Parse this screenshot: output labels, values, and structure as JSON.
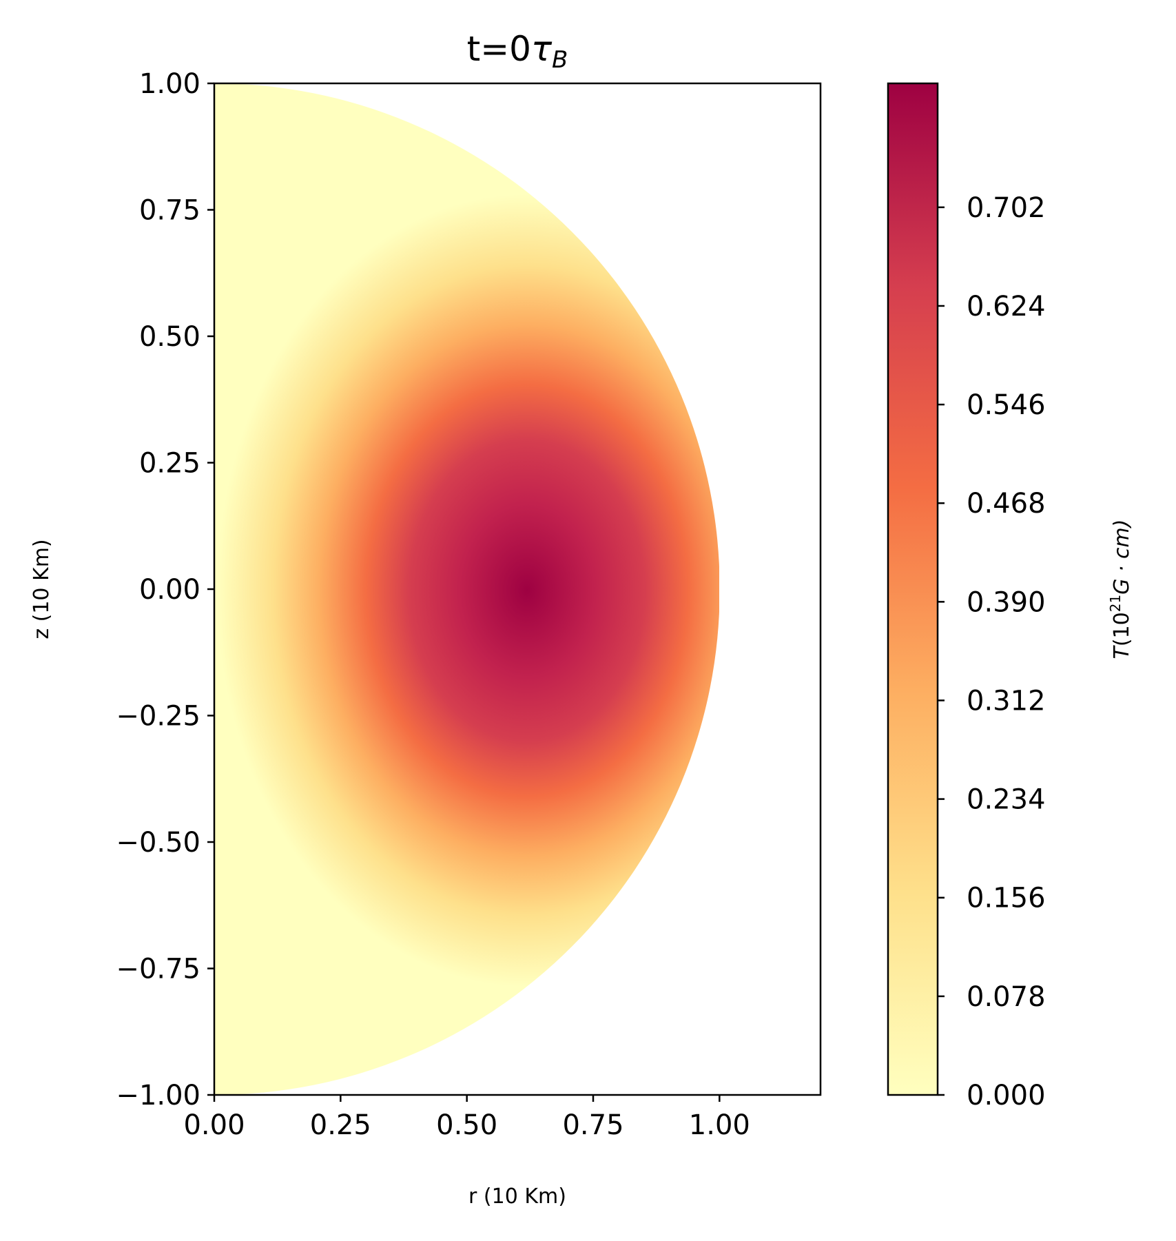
{
  "chart_data": {
    "type": "heatmap",
    "title": "t=0",
    "title_symbol": "τ",
    "title_subscript": "B",
    "xlabel": "r (10 Km)",
    "ylabel": "z (10 Km)",
    "xlim": [
      0.0,
      1.2
    ],
    "ylim": [
      -1.0,
      1.0
    ],
    "xticks": [
      "0.00",
      "0.25",
      "0.50",
      "0.75",
      "1.00"
    ],
    "xtick_values": [
      0.0,
      0.25,
      0.5,
      0.75,
      1.0
    ],
    "yticks": [
      "1.00",
      "0.75",
      "0.50",
      "0.25",
      "0.00",
      "−0.25",
      "−0.50",
      "−0.75",
      "−1.00"
    ],
    "ytick_values": [
      1.0,
      0.75,
      0.5,
      0.25,
      0.0,
      -0.25,
      -0.5,
      -0.75,
      -1.0
    ],
    "domain": "half-disk r^2 + z^2 <= 1, r >= 0",
    "field_peak": {
      "r": 0.62,
      "z": 0.0,
      "value": 0.78
    },
    "grid": false,
    "colormap": "YlOrRd-like (light yellow to dark crimson)",
    "colormap_stops": [
      "#ffffbf",
      "#fee08b",
      "#fdae61",
      "#f46d43",
      "#d53e4f",
      "#9e0142"
    ],
    "colorbar": {
      "ticks": [
        "0.000",
        "0.078",
        "0.156",
        "0.234",
        "0.312",
        "0.390",
        "0.468",
        "0.546",
        "0.624",
        "0.702"
      ],
      "tick_values": [
        0.0,
        0.078,
        0.156,
        0.234,
        0.312,
        0.39,
        0.468,
        0.546,
        0.624,
        0.702
      ],
      "range": [
        0.0,
        0.8
      ],
      "label_symbol": "T",
      "label_open": "(10",
      "label_exp": "21",
      "label_rest": "G · cm)"
    }
  }
}
